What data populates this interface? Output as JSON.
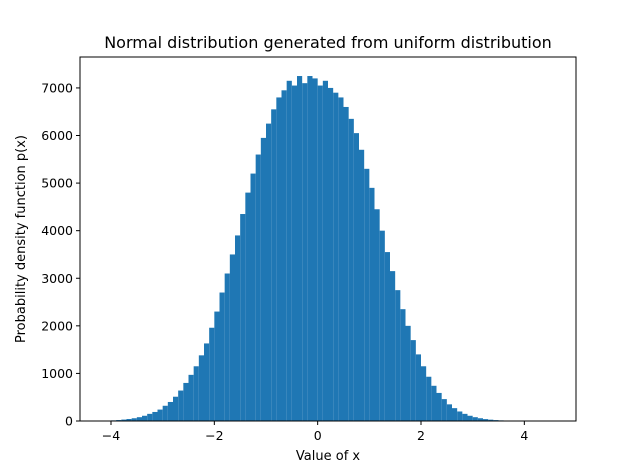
{
  "chart_data": {
    "type": "bar",
    "title": "Normal distribution generated from uniform distribution",
    "xlabel": "Value of x",
    "ylabel": "Probability density function p(x)",
    "xlim": [
      -4.6,
      5.0
    ],
    "ylim": [
      0,
      7650
    ],
    "xticks": [
      -4,
      -2,
      0,
      2,
      4
    ],
    "yticks": [
      0,
      1000,
      2000,
      3000,
      4000,
      5000,
      6000,
      7000
    ],
    "grid": false,
    "bar_color": "#1f77b4",
    "bin_width": 0.1,
    "bin_centers": [
      -4.45,
      -4.35,
      -4.25,
      -4.15,
      -4.05,
      -3.95,
      -3.85,
      -3.75,
      -3.65,
      -3.55,
      -3.45,
      -3.35,
      -3.25,
      -3.15,
      -3.05,
      -2.95,
      -2.85,
      -2.75,
      -2.65,
      -2.55,
      -2.45,
      -2.35,
      -2.25,
      -2.15,
      -2.05,
      -1.95,
      -1.85,
      -1.75,
      -1.65,
      -1.55,
      -1.45,
      -1.35,
      -1.25,
      -1.15,
      -1.05,
      -0.95,
      -0.85,
      -0.75,
      -0.65,
      -0.55,
      -0.45,
      -0.35,
      -0.25,
      -0.15,
      -0.05,
      0.05,
      0.15,
      0.25,
      0.35,
      0.45,
      0.55,
      0.65,
      0.75,
      0.85,
      0.95,
      1.05,
      1.15,
      1.25,
      1.35,
      1.45,
      1.55,
      1.65,
      1.75,
      1.85,
      1.95,
      2.05,
      2.15,
      2.25,
      2.35,
      2.45,
      2.55,
      2.65,
      2.75,
      2.85,
      2.95,
      3.05,
      3.15,
      3.25,
      3.35,
      3.45,
      3.55,
      3.65,
      3.75,
      3.85,
      3.95,
      4.05,
      4.15,
      4.25,
      4.35,
      4.45,
      4.55
    ],
    "counts": [
      2,
      2,
      4,
      7,
      9,
      13,
      20,
      30,
      42,
      58,
      80,
      110,
      150,
      190,
      240,
      320,
      400,
      510,
      640,
      800,
      970,
      1150,
      1380,
      1630,
      1960,
      2300,
      2700,
      3100,
      3500,
      3900,
      4350,
      4800,
      5200,
      5600,
      5950,
      6250,
      6550,
      6800,
      6950,
      7150,
      7050,
      7250,
      7100,
      7250,
      7200,
      7050,
      7150,
      7000,
      6900,
      6800,
      6600,
      6350,
      6050,
      5700,
      5300,
      4900,
      4450,
      4000,
      3550,
      3150,
      2750,
      2350,
      2000,
      1700,
      1400,
      1150,
      930,
      740,
      590,
      460,
      350,
      270,
      200,
      150,
      110,
      80,
      58,
      40,
      28,
      19,
      13,
      9,
      6,
      4,
      3,
      2,
      1,
      1,
      1,
      1,
      1
    ]
  }
}
